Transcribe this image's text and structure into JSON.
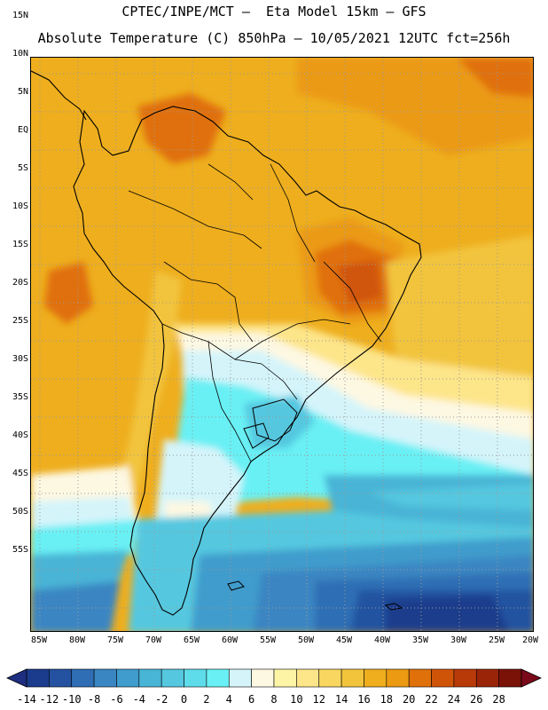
{
  "header": {
    "line1": "CPTEC/INPE/MCT –  Eta Model 15km – GFS",
    "line2": "Absolute Temperature (C) 850hPa – 10/05/2021 12UTC fct=256h"
  },
  "map": {
    "lat_labels": [
      "15N",
      "10N",
      "5N",
      "EQ",
      "5S",
      "10S",
      "15S",
      "20S",
      "25S",
      "30S",
      "35S",
      "40S",
      "45S",
      "50S",
      "55S"
    ],
    "lon_labels": [
      "85W",
      "80W",
      "75W",
      "70W",
      "65W",
      "60W",
      "55W",
      "50W",
      "45W",
      "40W",
      "35W",
      "30W",
      "25W",
      "20W"
    ]
  },
  "colorbar": {
    "labels": [
      "-14",
      "-12",
      "-10",
      "-8",
      "-6",
      "-4",
      "-2",
      "0",
      "2",
      "4",
      "6",
      "8",
      "10",
      "12",
      "14",
      "16",
      "18",
      "20",
      "22",
      "24",
      "26",
      "28"
    ],
    "colors": [
      "#1b3c8c",
      "#2452a0",
      "#2f6eb4",
      "#3a86c2",
      "#3f9ccc",
      "#48b4d6",
      "#55c8e0",
      "#5edcea",
      "#69f0f4",
      "#d4f4fa",
      "#fdf8e2",
      "#fef4a6",
      "#fde58a",
      "#f8d660",
      "#f2c43c",
      "#eeae1e",
      "#eb9a12",
      "#e0700a",
      "#d05408",
      "#b83a08",
      "#9a2408",
      "#7a1208"
    ],
    "under_color": "#1e2e80",
    "over_color": "#7a0a1a"
  }
}
